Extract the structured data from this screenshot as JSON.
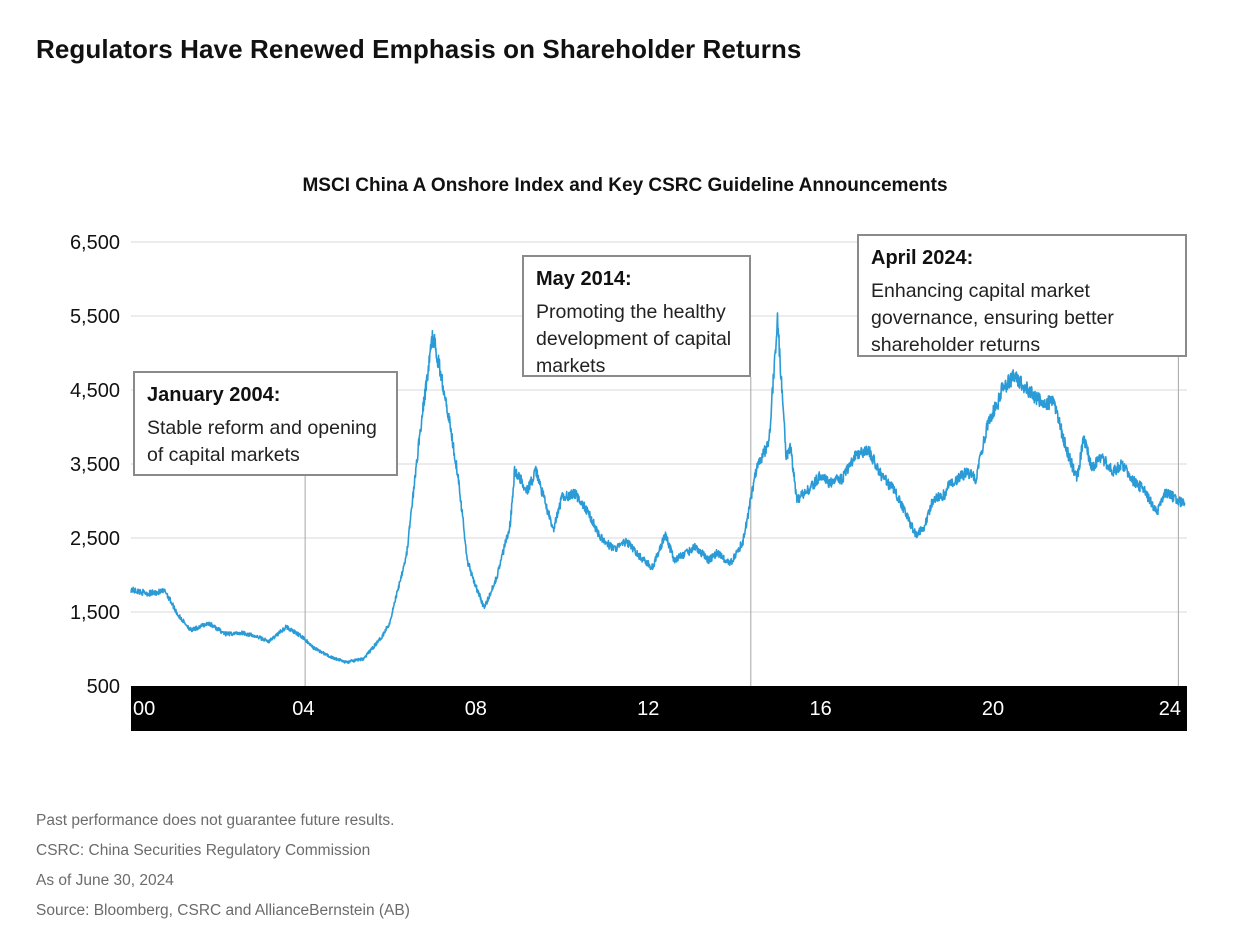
{
  "title": "Regulators Have Renewed Emphasis on Shareholder Returns",
  "footnotes": [
    "Past performance does not guarantee future results.",
    "CSRC: China Securities Regulatory Commission",
    "As of June 30, 2024",
    "Source: Bloomberg, CSRC and AllianceBernstein (AB)"
  ],
  "colors": {
    "line": "#2a9bd6",
    "grid": "#d9d9d9",
    "axis_band": "#000000",
    "callout_border": "#8a8a8a",
    "marker_line": "#a6a6a6"
  },
  "callouts": [
    {
      "id": "2004",
      "date": 2004.04,
      "heading": "January 2004:",
      "text": "Stable reform and opening of capital markets"
    },
    {
      "id": "2014",
      "date": 2014.38,
      "heading": "May 2014:",
      "text": "Promoting the healthy development of capital markets"
    },
    {
      "id": "2024",
      "date": 2024.3,
      "heading": "April 2024:",
      "text": "Enhancing capital market governance, ensuring better shareholder returns"
    }
  ],
  "chart_data": {
    "type": "line",
    "title": "MSCI China A Onshore Index and Key CSRC Guideline Announcements",
    "xlabel": "",
    "ylabel": "",
    "xlim": [
      2000,
      2024.5
    ],
    "ylim": [
      500,
      6500
    ],
    "yticks": [
      500,
      1500,
      2500,
      3500,
      4500,
      5500,
      6500
    ],
    "ytick_labels": [
      "500",
      "1,500",
      "2,500",
      "3,500",
      "4,500",
      "5,500",
      "6,500"
    ],
    "xticks": [
      2000,
      2004,
      2008,
      2012,
      2016,
      2020,
      2024
    ],
    "xtick_labels": [
      "00",
      "04",
      "08",
      "12",
      "16",
      "20",
      "24"
    ],
    "grid": true,
    "series": [
      {
        "name": "MSCI China A Onshore Index",
        "x": [
          2000.0,
          2000.4,
          2000.8,
          2001.1,
          2001.4,
          2001.8,
          2002.2,
          2002.6,
          2003.0,
          2003.2,
          2003.6,
          2004.0,
          2004.2,
          2004.6,
          2005.0,
          2005.4,
          2005.8,
          2006.0,
          2006.4,
          2006.7,
          2007.0,
          2007.3,
          2007.6,
          2007.8,
          2008.0,
          2008.2,
          2008.5,
          2008.8,
          2008.9,
          2009.2,
          2009.4,
          2009.6,
          2009.8,
          2010.0,
          2010.3,
          2010.6,
          2010.9,
          2011.2,
          2011.5,
          2011.8,
          2012.1,
          2012.4,
          2012.6,
          2012.9,
          2013.1,
          2013.4,
          2013.6,
          2013.9,
          2014.2,
          2014.5,
          2014.8,
          2015.0,
          2015.2,
          2015.3,
          2015.45,
          2015.6,
          2015.8,
          2016.0,
          2016.2,
          2016.5,
          2016.8,
          2017.1,
          2017.4,
          2017.7,
          2018.0,
          2018.2,
          2018.4,
          2018.6,
          2018.9,
          2019.0,
          2019.2,
          2019.4,
          2019.6,
          2019.9,
          2020.1,
          2020.2,
          2020.5,
          2020.8,
          2021.0,
          2021.2,
          2021.4,
          2021.7,
          2021.95,
          2022.1,
          2022.3,
          2022.5,
          2022.8,
          2023.0,
          2023.2,
          2023.5,
          2023.8,
          2024.0,
          2024.2,
          2024.45
        ],
        "y": [
          1800,
          1750,
          1780,
          1450,
          1250,
          1350,
          1200,
          1220,
          1150,
          1100,
          1300,
          1150,
          1030,
          900,
          820,
          870,
          1150,
          1350,
          2300,
          3900,
          5250,
          4400,
          3300,
          2200,
          1850,
          1550,
          2000,
          2700,
          3400,
          3150,
          3400,
          3000,
          2600,
          3050,
          3100,
          2850,
          2500,
          2350,
          2450,
          2250,
          2100,
          2550,
          2200,
          2300,
          2380,
          2200,
          2300,
          2150,
          2450,
          3400,
          3800,
          5450,
          3600,
          3750,
          3000,
          3100,
          3200,
          3350,
          3250,
          3300,
          3600,
          3700,
          3350,
          3150,
          2800,
          2550,
          2650,
          3000,
          3100,
          3250,
          3300,
          3400,
          3300,
          4100,
          4300,
          4500,
          4700,
          4500,
          4400,
          4300,
          4350,
          3700,
          3300,
          3850,
          3450,
          3600,
          3400,
          3500,
          3300,
          3150,
          2850,
          3100,
          3050,
          2950
        ]
      }
    ]
  }
}
